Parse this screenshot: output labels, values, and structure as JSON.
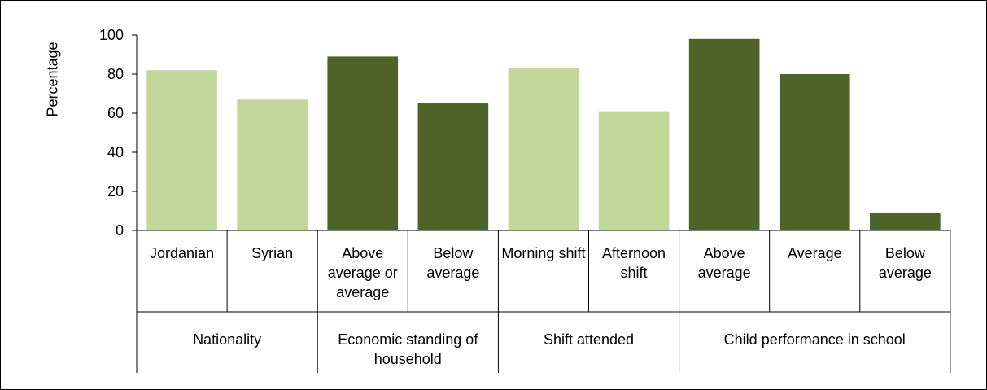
{
  "chart_data": {
    "type": "bar",
    "ylabel": "Percentage",
    "ylim": [
      0,
      100
    ],
    "yticks": [
      0,
      20,
      40,
      60,
      80,
      100
    ],
    "groups": [
      {
        "name": "Nationality",
        "color": "#c4d79b",
        "categories": [
          "Jordanian",
          "Syrian"
        ],
        "values": [
          82,
          67
        ]
      },
      {
        "name": "Economic standing of household",
        "color": "#4f6228",
        "categories": [
          "Above average or average",
          "Below average"
        ],
        "values": [
          89,
          65
        ]
      },
      {
        "name": "Shift attended",
        "color": "#c4d79b",
        "categories": [
          "Morning shift",
          "Afternoon shift"
        ],
        "values": [
          83,
          61
        ]
      },
      {
        "name": "Child performance in school",
        "color": "#4f6228",
        "categories": [
          "Above average",
          "Average",
          "Below average"
        ],
        "values": [
          98,
          80,
          9
        ]
      }
    ]
  }
}
